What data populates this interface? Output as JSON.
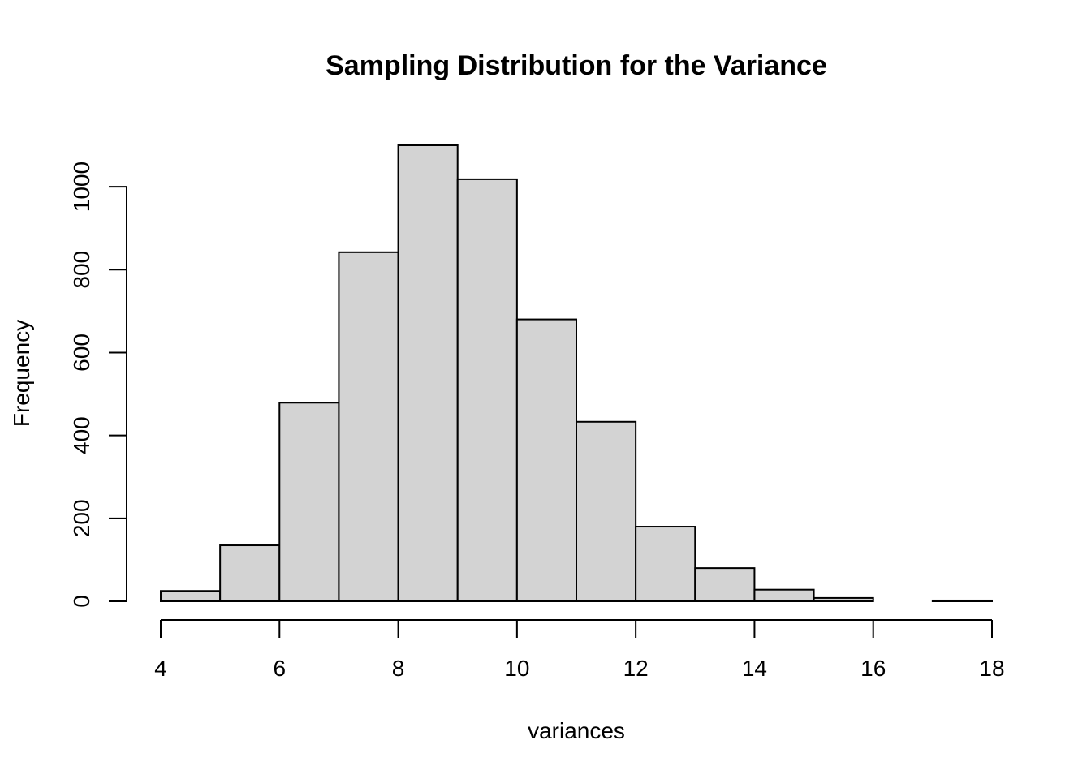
{
  "chart_data": {
    "type": "bar",
    "title": "Sampling Distribution for the Variance",
    "xlabel": "variances",
    "ylabel": "Frequency",
    "bins": [
      {
        "start": 4,
        "end": 5,
        "count": 25
      },
      {
        "start": 5,
        "end": 6,
        "count": 135
      },
      {
        "start": 6,
        "end": 7,
        "count": 479
      },
      {
        "start": 7,
        "end": 8,
        "count": 842
      },
      {
        "start": 8,
        "end": 9,
        "count": 1100
      },
      {
        "start": 9,
        "end": 10,
        "count": 1018
      },
      {
        "start": 10,
        "end": 11,
        "count": 680
      },
      {
        "start": 11,
        "end": 12,
        "count": 433
      },
      {
        "start": 12,
        "end": 13,
        "count": 180
      },
      {
        "start": 13,
        "end": 14,
        "count": 80
      },
      {
        "start": 14,
        "end": 15,
        "count": 28
      },
      {
        "start": 15,
        "end": 16,
        "count": 8
      },
      {
        "start": 16,
        "end": 17,
        "count": 0
      },
      {
        "start": 17,
        "end": 18,
        "count": 2
      }
    ],
    "xlim": [
      4,
      18
    ],
    "ylim": [
      0,
      1100
    ],
    "x_ticks": [
      4,
      6,
      8,
      10,
      12,
      14,
      16,
      18
    ],
    "y_ticks": [
      0,
      200,
      400,
      600,
      800,
      1000
    ],
    "grid": false
  }
}
